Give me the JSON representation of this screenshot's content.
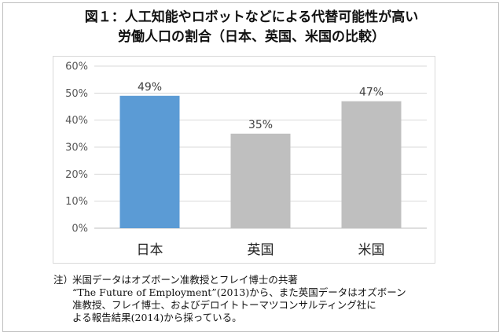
{
  "title": {
    "line1": "図１：人工知能やロボットなどによる代替可能性が高い",
    "line2": "労働人口の割合（日本、英国、米国の比較）"
  },
  "chart_data": {
    "type": "bar",
    "categories": [
      "日本",
      "英国",
      "米国"
    ],
    "values": [
      49,
      35,
      47
    ],
    "data_labels": [
      "49%",
      "35%",
      "47%"
    ],
    "bar_colors": [
      "#5b9bd5",
      "#bfbfbf",
      "#bfbfbf"
    ],
    "yticks": [
      "0%",
      "10%",
      "20%",
      "30%",
      "40%",
      "50%",
      "60%"
    ],
    "ylim": [
      0,
      60
    ],
    "grid": true,
    "legend": "none",
    "title": "",
    "xlabel": "",
    "ylabel": ""
  },
  "note": {
    "prefix": "注）",
    "lines": [
      "米国データはオズボーン准教授とフレイ博士の共著",
      "“The Future of Employment”(2013)から、また英国データはオズボーン",
      "准教授、フレイ博士、およびデロイトトーマツコンサルティング社に",
      "よる報告結果(2014)から採っている。"
    ]
  }
}
